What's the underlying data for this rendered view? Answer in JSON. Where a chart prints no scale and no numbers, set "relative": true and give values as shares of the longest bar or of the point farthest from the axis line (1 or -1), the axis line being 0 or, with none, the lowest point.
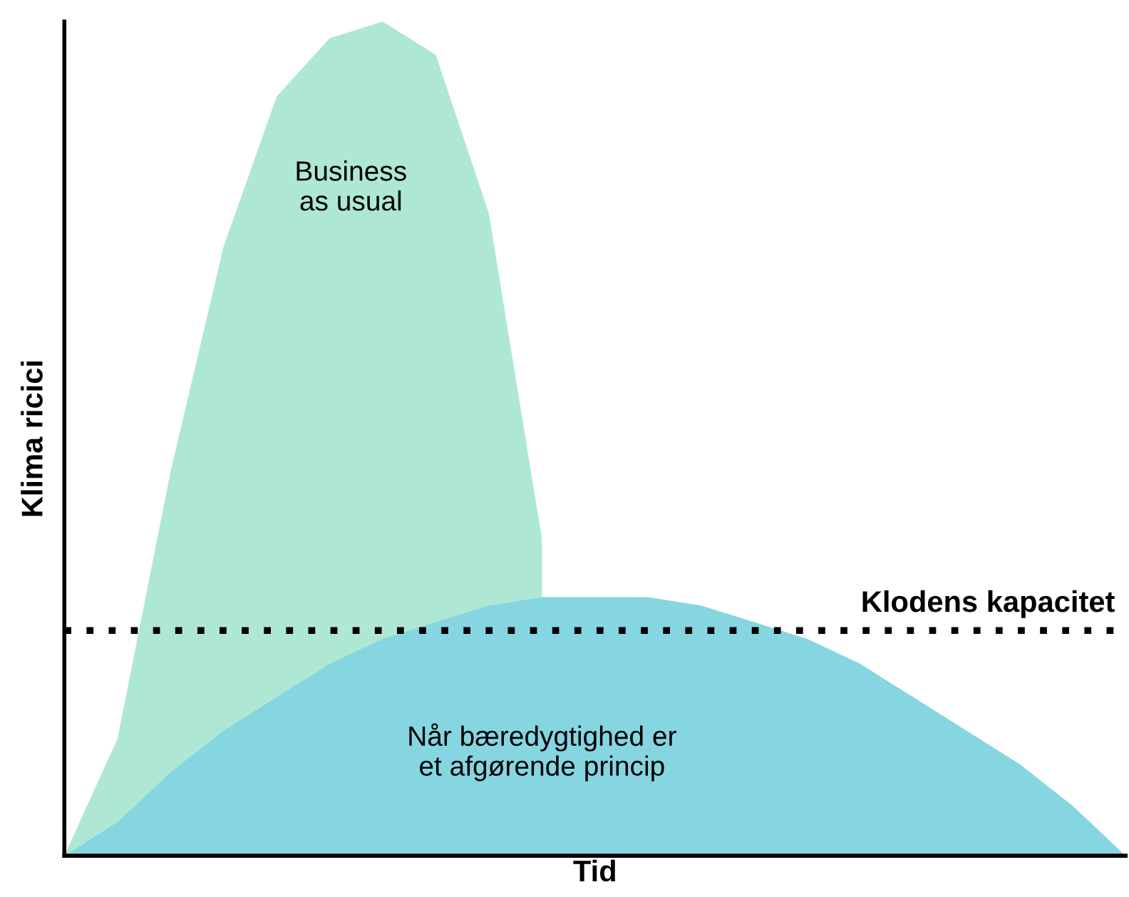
{
  "chart_data": {
    "type": "area",
    "relative": true,
    "xlabel": "Tid",
    "ylabel": "Klima ricici",
    "legend": false,
    "categories": [
      null,
      null,
      null,
      null,
      null,
      null,
      null,
      null,
      null,
      null,
      null,
      null,
      null,
      null,
      null,
      null,
      null,
      null,
      null,
      null,
      null
    ],
    "series": [
      {
        "color": "#aee8d4",
        "values": [
          0,
          0.14,
          0.46,
          0.73,
          0.91,
          0.98,
          1,
          0.96,
          0.77,
          0.38,
          null,
          null,
          null,
          null,
          null,
          null,
          null,
          null,
          null,
          null,
          null
        ]
      },
      {
        "color": "#86d6e2",
        "values": [
          0,
          0.04,
          0.1,
          0.15,
          0.19,
          0.23,
          0.26,
          0.28,
          0.3,
          0.31,
          0.31,
          0.31,
          0.3,
          0.28,
          0.26,
          0.23,
          0.19,
          0.15,
          0.11,
          0.06,
          0
        ]
      }
    ],
    "ref_lines": [
      {
        "axis": "y",
        "value": 0.27,
        "label": "Klodens kapacitet",
        "color": "#000000",
        "line_style": "dotted"
      }
    ],
    "annotations": [
      "Business\nas usual",
      "Når bæredygtighed er\net afgørende princip"
    ]
  }
}
